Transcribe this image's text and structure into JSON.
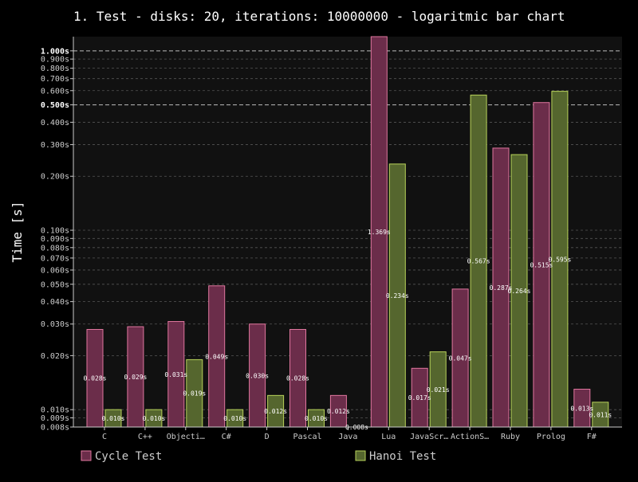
{
  "chart_data": {
    "type": "bar",
    "title": "1. Test - disks: 20, iterations: 10000000 - logaritmic bar chart",
    "ylabel": "Time [s]",
    "xlabel": "",
    "yscale": "log",
    "ylim": [
      0.008,
      1.2
    ],
    "grid": true,
    "legend_position": "bottom",
    "categories": [
      "C",
      "C++",
      "Objecti…",
      "C#",
      "D",
      "Pascal",
      "Java",
      "Lua",
      "JavaScr…",
      "ActionS…",
      "Ruby",
      "Prolog",
      "F#"
    ],
    "y_ticks": [
      {
        "value": 0.008,
        "label": "0.008s",
        "major": false
      },
      {
        "value": 0.009,
        "label": "0.009s",
        "major": false
      },
      {
        "value": 0.01,
        "label": "0.010s",
        "major": false
      },
      {
        "value": 0.02,
        "label": "0.020s",
        "major": false
      },
      {
        "value": 0.03,
        "label": "0.030s",
        "major": false
      },
      {
        "value": 0.04,
        "label": "0.040s",
        "major": false
      },
      {
        "value": 0.05,
        "label": "0.050s",
        "major": false
      },
      {
        "value": 0.06,
        "label": "0.060s",
        "major": false
      },
      {
        "value": 0.07,
        "label": "0.070s",
        "major": false
      },
      {
        "value": 0.08,
        "label": "0.080s",
        "major": false
      },
      {
        "value": 0.09,
        "label": "0.090s",
        "major": false
      },
      {
        "value": 0.1,
        "label": "0.100s",
        "major": false
      },
      {
        "value": 0.2,
        "label": "0.200s",
        "major": false
      },
      {
        "value": 0.3,
        "label": "0.300s",
        "major": false
      },
      {
        "value": 0.4,
        "label": "0.400s",
        "major": false
      },
      {
        "value": 0.5,
        "label": "0.500s",
        "major": true
      },
      {
        "value": 0.6,
        "label": "0.600s",
        "major": false
      },
      {
        "value": 0.7,
        "label": "0.700s",
        "major": false
      },
      {
        "value": 0.8,
        "label": "0.800s",
        "major": false
      },
      {
        "value": 0.9,
        "label": "0.900s",
        "major": false
      },
      {
        "value": 1.0,
        "label": "1.000s",
        "major": true
      }
    ],
    "series": [
      {
        "name": "Cycle Test",
        "color": "#6b2d4a",
        "stroke": "#e0779f",
        "values": [
          0.028,
          0.029,
          0.031,
          0.049,
          0.03,
          0.028,
          0.012,
          1.369,
          0.017,
          0.047,
          0.287,
          0.515,
          0.013
        ],
        "labels": [
          "0.028s",
          "0.029s",
          "0.031s",
          "0.049s",
          "0.030s",
          "0.028s",
          "0.012s",
          "1.369s",
          "0.017s",
          "0.047s",
          "0.287s",
          "0.515s",
          "0.013s"
        ]
      },
      {
        "name": "Hanoi Test",
        "color": "#55662e",
        "stroke": "#b8d25a",
        "values": [
          0.01,
          0.01,
          0.019,
          0.01,
          0.012,
          0.01,
          0.008,
          0.234,
          0.021,
          0.567,
          0.264,
          0.595,
          0.011
        ],
        "labels": [
          "0.010s",
          "0.010s",
          "0.019s",
          "0.010s",
          "0.012s",
          "0.010s",
          "0.008s",
          "0.234s",
          "0.021s",
          "0.567s",
          "0.264s",
          "0.595s",
          "0.011s"
        ]
      }
    ]
  }
}
